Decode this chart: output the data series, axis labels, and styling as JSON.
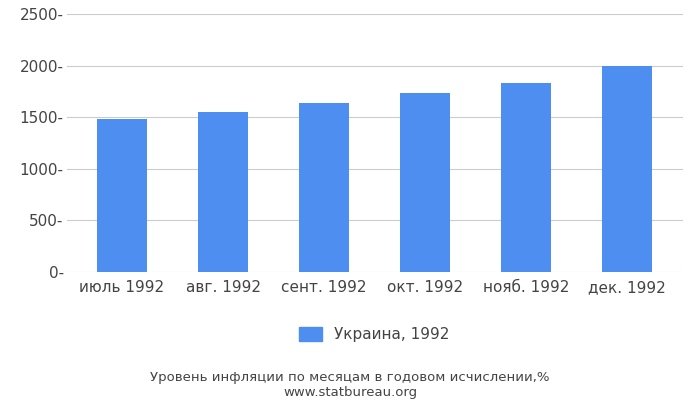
{
  "categories": [
    "июль 1992",
    "авг. 1992",
    "сент. 1992",
    "окт. 1992",
    "нояб. 1992",
    "дек. 1992"
  ],
  "values": [
    1484,
    1546,
    1633,
    1734,
    1828,
    2000
  ],
  "bar_color": "#4d8ef0",
  "ylim": [
    0,
    2500
  ],
  "yticks": [
    0,
    500,
    1000,
    1500,
    2000,
    2500
  ],
  "ytick_labels": [
    "0-",
    "500-",
    "1000-",
    "1500-",
    "2000-",
    "2500-"
  ],
  "legend_label": "Украина, 1992",
  "footer_line1": "Уровень инфляции по месяцам в годовом исчислении,%",
  "footer_line2": "www.statbureau.org",
  "background_color": "#ffffff",
  "grid_color": "#cccccc",
  "text_color": "#444444",
  "tick_fontsize": 11,
  "legend_fontsize": 11,
  "footer_fontsize": 9.5
}
